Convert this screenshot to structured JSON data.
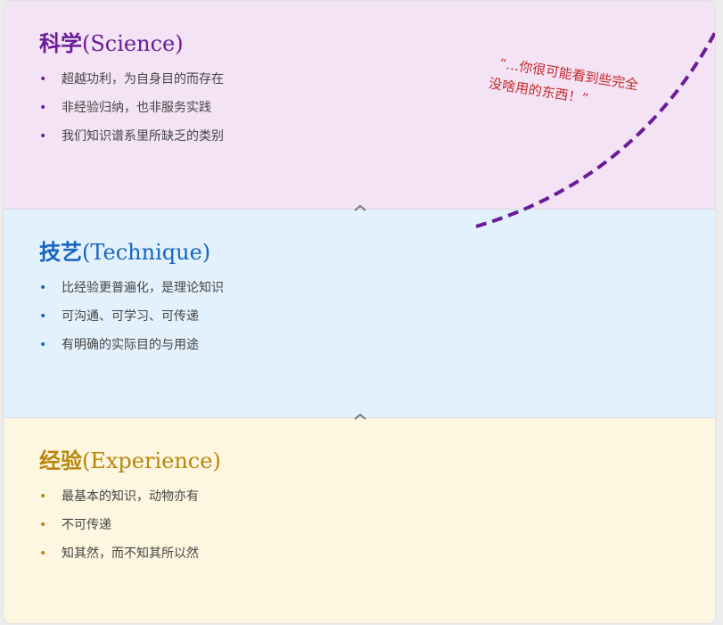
{
  "sections": [
    {
      "title_cn": "科学",
      "title_en": "(Science)",
      "items": [
        "超越功利，为自身目的而存在",
        "非经验归纳，也非服务实践",
        "我们知识谱系里所缺乏的类别"
      ]
    },
    {
      "title_cn": "技艺",
      "title_en": "(Technique)",
      "items": [
        "比经验更普遍化，是理论知识",
        "可沟通、可学习、可传递",
        "有明确的实际目的与用途"
      ]
    },
    {
      "title_cn": "经验",
      "title_en": "(Experience)",
      "items": [
        "最基本的知识，动物亦有",
        "不可传递",
        "知其然，而不知其所以然"
      ]
    }
  ],
  "annotation": {
    "line1": "“…你很可能看到些完全",
    "line2": "没啥用的东西！”",
    "color": "#c62828",
    "curve_color": "#6a1b9a"
  },
  "colors": {
    "science": "#6a1b9a",
    "technique": "#1565c0",
    "experience": "#b8860b"
  }
}
